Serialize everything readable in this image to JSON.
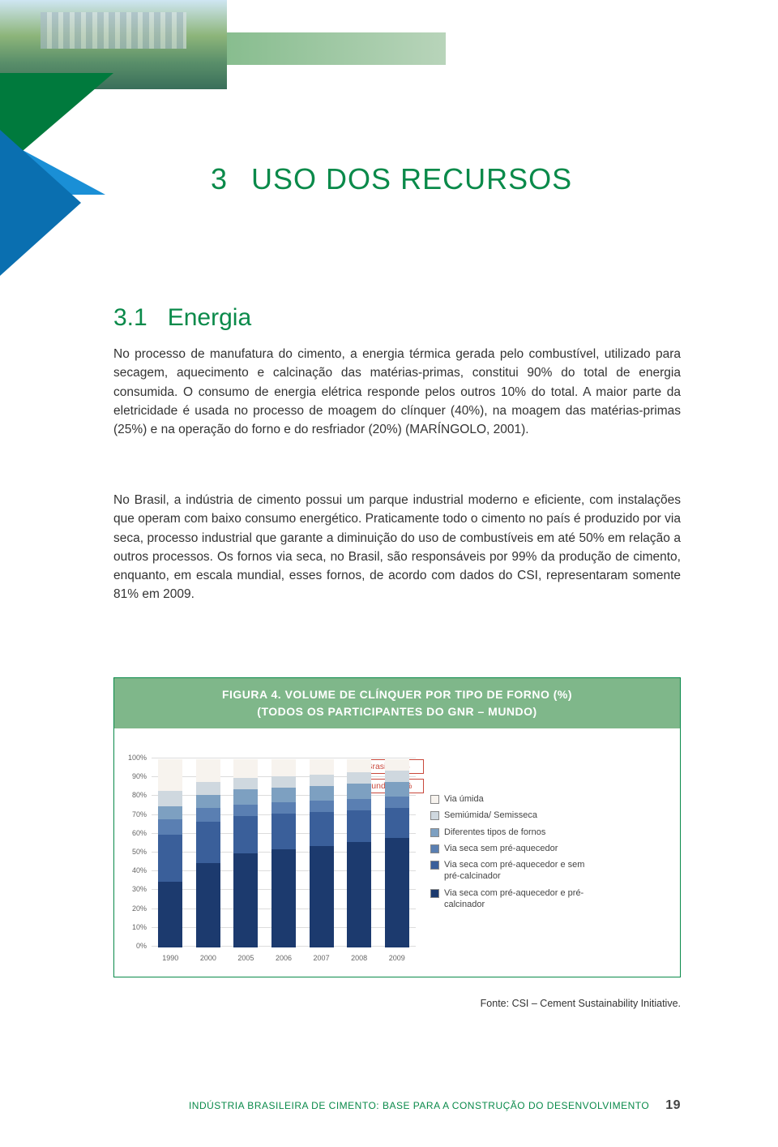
{
  "header": {
    "band_gradient": [
      "#6ca86f",
      "#7db885",
      "#b8d4ba"
    ]
  },
  "chapter": {
    "number": "3",
    "title": "USO DOS RECURSOS"
  },
  "section": {
    "number": "3.1",
    "title": "Energia"
  },
  "paragraphs": {
    "p1": "No processo de manufatura do cimento, a energia térmica gerada pelo combustível, utilizado para secagem, aquecimento e calcinação das matérias-primas, constitui 90% do total de energia consumida. O consumo de energia elétrica responde pelos outros 10% do total. A maior parte da eletricidade é usada no processo de moagem do clínquer (40%), na moagem das matérias-primas (25%) e na operação do forno e do resfriador (20%) (MARÍNGOLO, 2001).",
    "p2": "No Brasil, a indústria de cimento possui um parque industrial moderno e eficiente, com instalações que operam com baixo consumo energético. Praticamente todo o cimento no país é produzido por via seca, processo industrial que garante a diminuição do uso de combustíveis em até 50% em relação a outros processos. Os fornos via seca, no Brasil, são responsáveis por 99% da produção de cimento, enquanto, em escala mundial, esses fornos, de acordo com dados do CSI, representaram somente 81% em 2009."
  },
  "figure": {
    "title_line1": "FIGURA 4. VOLUME DE CLÍNQUER POR TIPO DE FORNO (%)",
    "title_line2": "(TODOS OS PARTICIPANTES DO GNR – MUNDO)",
    "callouts": [
      {
        "label": "Brasil: 99%"
      },
      {
        "label": "Mundo: 81%"
      }
    ],
    "y_ticks": [
      0,
      10,
      20,
      30,
      40,
      50,
      60,
      70,
      80,
      90,
      100
    ],
    "categories": [
      "1990",
      "2000",
      "2005",
      "2006",
      "2007",
      "2008",
      "2009"
    ],
    "legend": [
      {
        "label": "Via úmida",
        "color": "#f7f3ee"
      },
      {
        "label": "Semiúmida/ Semisseca",
        "color": "#cfd8df"
      },
      {
        "label": "Diferentes tipos de fornos",
        "color": "#7da0c1"
      },
      {
        "label": "Via seca sem pré-aquecedor",
        "color": "#5a7fb2"
      },
      {
        "label": "Via seca com pré-aquecedor e sem pré-calcinador",
        "color": "#3a5f9a"
      },
      {
        "label": "Via seca com pré-aquecedor e pré-calcinador",
        "color": "#1c3a6e"
      }
    ],
    "series_order": [
      "s6",
      "s5",
      "s4",
      "s3",
      "s2",
      "s1"
    ],
    "series_colors": {
      "s1": "#f7f3ee",
      "s2": "#cfd8df",
      "s3": "#7da0c1",
      "s4": "#5a7fb2",
      "s5": "#3a5f9a",
      "s6": "#1c3a6e"
    },
    "data": [
      {
        "s6": 35,
        "s5": 25,
        "s4": 8,
        "s3": 7,
        "s2": 8,
        "s1": 17
      },
      {
        "s6": 45,
        "s5": 22,
        "s4": 7,
        "s3": 7,
        "s2": 7,
        "s1": 12
      },
      {
        "s6": 50,
        "s5": 20,
        "s4": 6,
        "s3": 8,
        "s2": 6,
        "s1": 10
      },
      {
        "s6": 52,
        "s5": 19,
        "s4": 6,
        "s3": 8,
        "s2": 6,
        "s1": 9
      },
      {
        "s6": 54,
        "s5": 18,
        "s4": 6,
        "s3": 8,
        "s2": 6,
        "s1": 8
      },
      {
        "s6": 56,
        "s5": 17,
        "s4": 6,
        "s3": 8,
        "s2": 6,
        "s1": 7
      },
      {
        "s6": 58,
        "s5": 16,
        "s4": 6,
        "s3": 8,
        "s2": 6,
        "s1": 6
      }
    ],
    "source": "Fonte: CSI – Cement Sustainability Initiative."
  },
  "footer": {
    "text": "INDÚSTRIA BRASILEIRA DE CIMENTO: BASE PARA A CONSTRUÇÃO DO DESENVOLVIMENTO",
    "page": "19"
  },
  "colors": {
    "accent_green": "#0a8a4a",
    "header_green": "#7fb78a",
    "callout_red": "#c9493c"
  }
}
